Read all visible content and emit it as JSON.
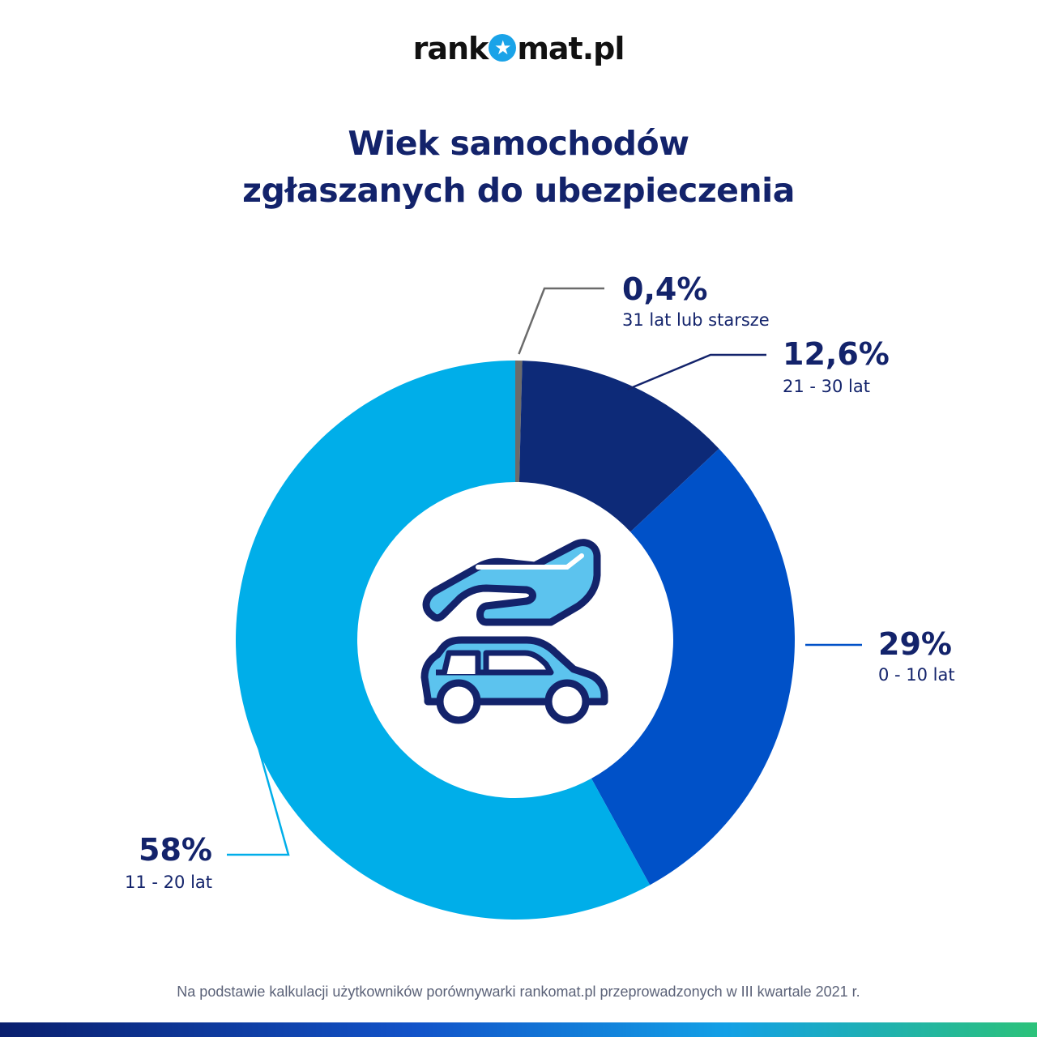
{
  "logo": {
    "text_before": "rank",
    "text_after": "mat.pl",
    "star_glyph": "★",
    "color": "#111111",
    "accent": "#1aa3e8"
  },
  "title": {
    "line1": "Wiek samochodów",
    "line2": "zgłaszanych do ubezpieczenia"
  },
  "center_icon": "hand-protecting-car-icon",
  "chart_data": {
    "type": "pie",
    "donut": true,
    "title": "Wiek samochodów zgłaszanych do ubezpieczenia",
    "slices": [
      {
        "value": 0.4,
        "label": "0,4%",
        "category": "31 lat lub starsze",
        "color": "#6b6b6b"
      },
      {
        "value": 12.6,
        "label": "12,6%",
        "category": "21 - 30 lat",
        "color": "#0d2a78"
      },
      {
        "value": 29,
        "label": "29%",
        "category": "0 - 10 lat",
        "color": "#0051c8"
      },
      {
        "value": 58,
        "label": "58%",
        "category": "11 - 20 lat",
        "color": "#00aee9"
      }
    ]
  },
  "footnote": "Na podstawie kalkulacji użytkowników porównywarki rankomat.pl przeprowadzonych w III kwartale 2021 r."
}
